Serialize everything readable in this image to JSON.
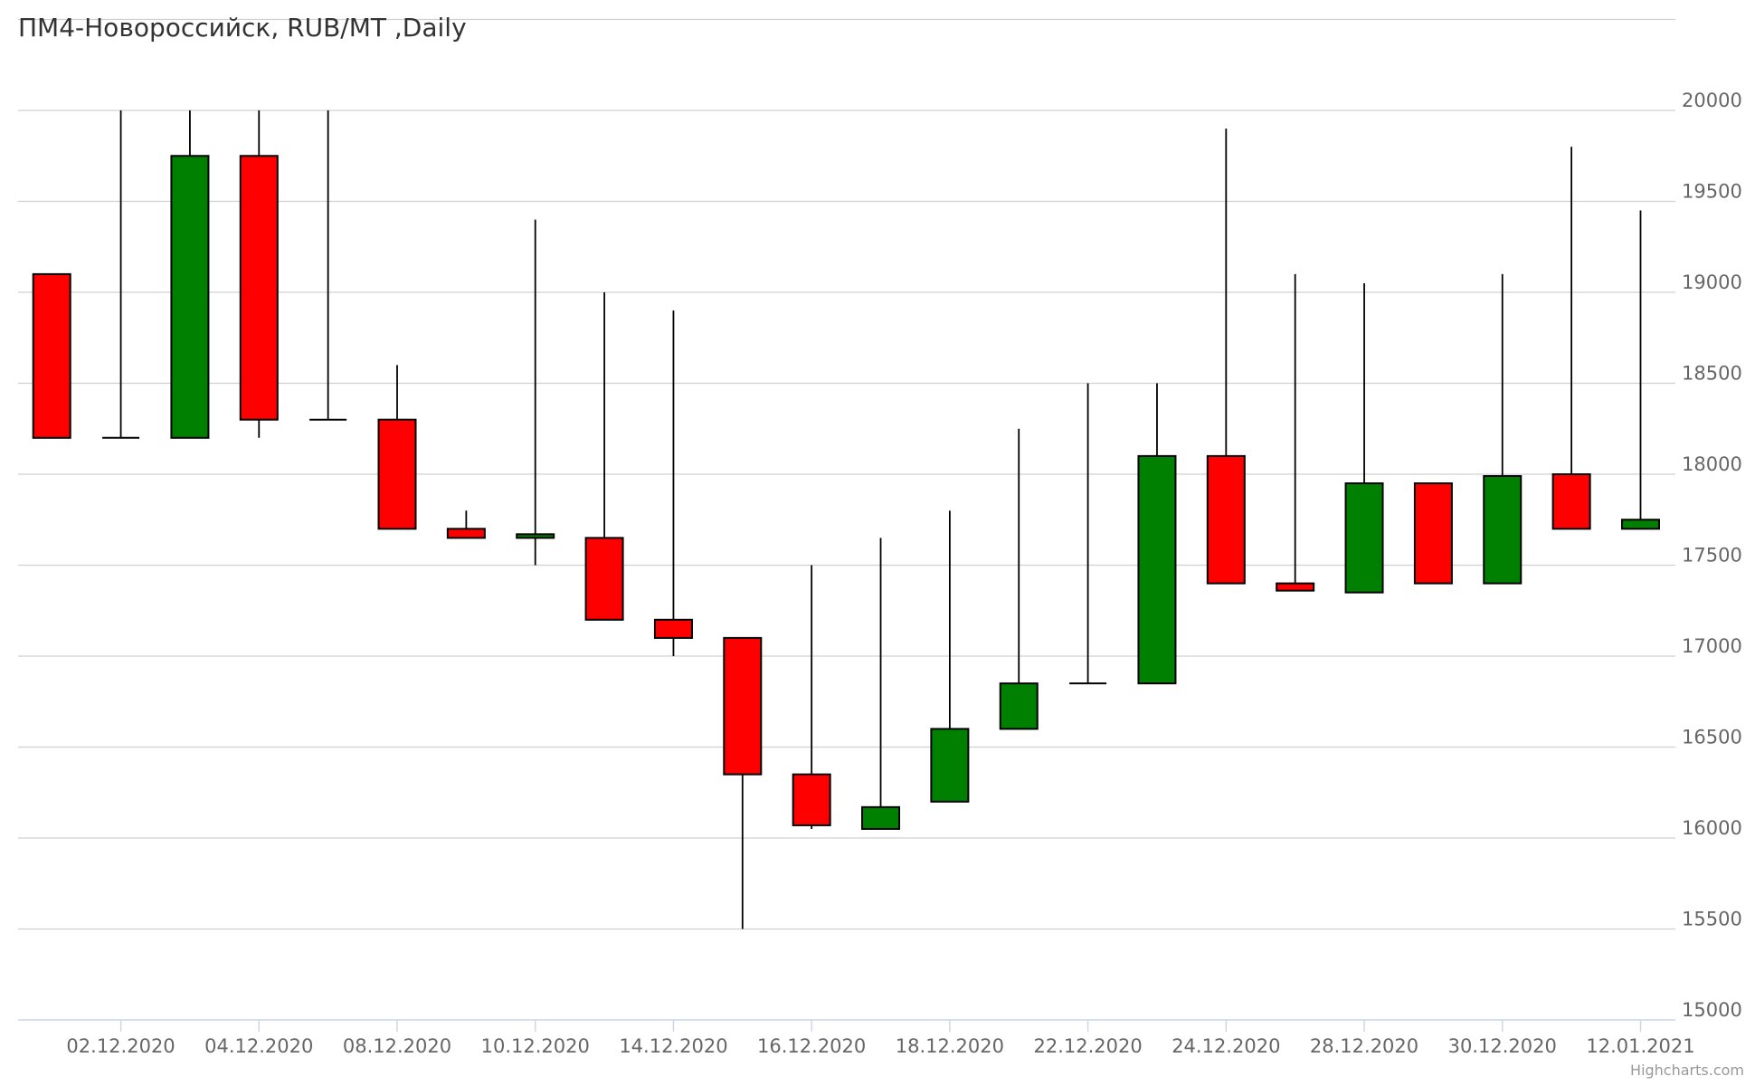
{
  "chart_data": {
    "type": "candlestick",
    "title": "ПМ4-Новороссийск, RUB/MT ,Daily",
    "ylim": [
      15000,
      20500
    ],
    "grid": true,
    "y_ticks": [
      15000,
      15500,
      16000,
      16500,
      17000,
      17500,
      18000,
      18500,
      19000,
      19500,
      20000
    ],
    "x_tick_labels": [
      {
        "index": 1,
        "label": "02.12.2020"
      },
      {
        "index": 3,
        "label": "04.12.2020"
      },
      {
        "index": 5,
        "label": "08.12.2020"
      },
      {
        "index": 7,
        "label": "10.12.2020"
      },
      {
        "index": 9,
        "label": "14.12.2020"
      },
      {
        "index": 11,
        "label": "16.12.2020"
      },
      {
        "index": 13,
        "label": "18.12.2020"
      },
      {
        "index": 15,
        "label": "22.12.2020"
      },
      {
        "index": 17,
        "label": "24.12.2020"
      },
      {
        "index": 19,
        "label": "28.12.2020"
      },
      {
        "index": 21,
        "label": "30.12.2020"
      },
      {
        "index": 23,
        "label": "12.01.2021"
      }
    ],
    "up_color": "#008000",
    "down_color": "#ff0000",
    "ohlc": [
      [
        19100,
        19100,
        18200,
        18200
      ],
      [
        18200,
        20000,
        18200,
        18200
      ],
      [
        18200,
        20000,
        18200,
        19750
      ],
      [
        19750,
        20000,
        18200,
        18300
      ],
      [
        18300,
        20000,
        18300,
        18300
      ],
      [
        18300,
        18600,
        17700,
        17700
      ],
      [
        17700,
        17800,
        17650,
        17650
      ],
      [
        17650,
        19400,
        17500,
        17670
      ],
      [
        17650,
        19000,
        17200,
        17200
      ],
      [
        17200,
        18900,
        17000,
        17100
      ],
      [
        17100,
        17100,
        15500,
        16350
      ],
      [
        16350,
        17500,
        16050,
        16070
      ],
      [
        16050,
        17650,
        16050,
        16170
      ],
      [
        16200,
        17800,
        16200,
        16600
      ],
      [
        16600,
        18250,
        16600,
        16850
      ],
      [
        16850,
        18500,
        16850,
        16850
      ],
      [
        16850,
        18500,
        16850,
        18100
      ],
      [
        18100,
        19900,
        17400,
        17400
      ],
      [
        17400,
        19100,
        17360,
        17360
      ],
      [
        17350,
        19050,
        17350,
        17950
      ],
      [
        17950,
        17950,
        17400,
        17400
      ],
      [
        17400,
        19100,
        17400,
        17990
      ],
      [
        18000,
        19800,
        17700,
        17700
      ],
      [
        17700,
        19450,
        17700,
        17750
      ]
    ]
  },
  "credit": "Highcharts.com"
}
